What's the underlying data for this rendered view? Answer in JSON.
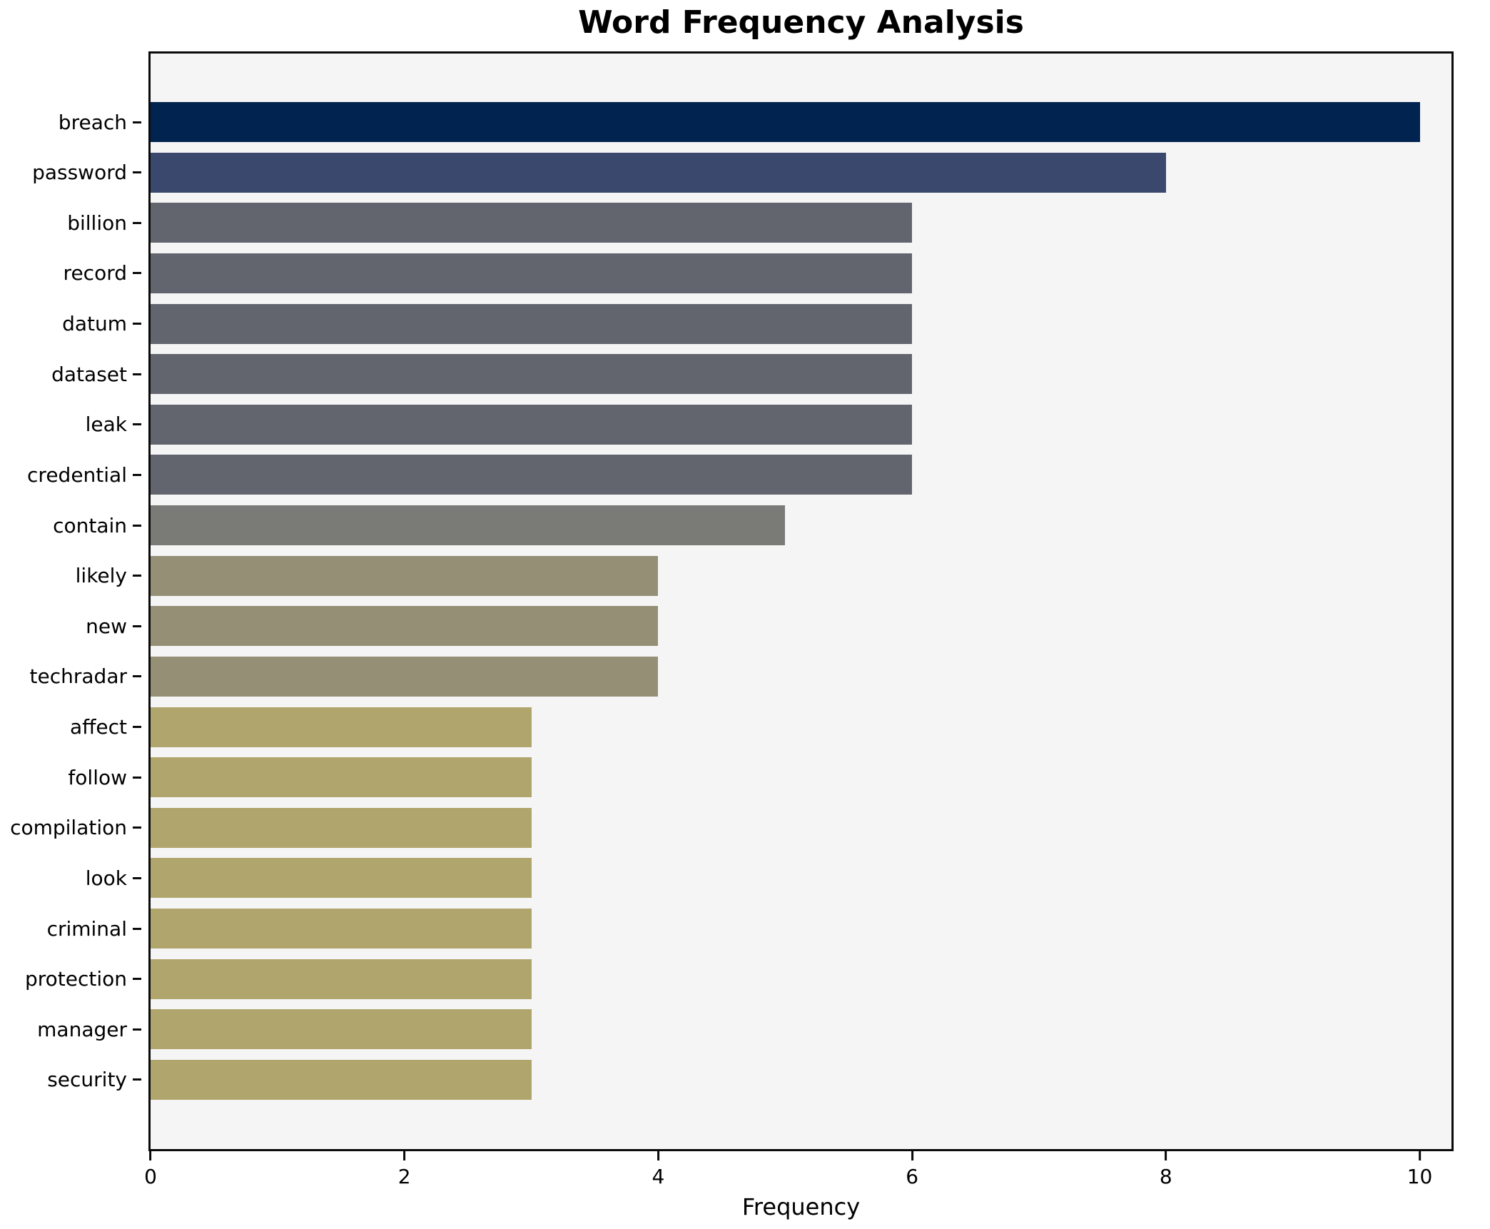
{
  "title": "Word Frequency Analysis",
  "xlabel": "Frequency",
  "chart_data": {
    "type": "bar",
    "orientation": "horizontal",
    "title": "Word Frequency Analysis",
    "xlabel": "Frequency",
    "ylabel": "",
    "grid": false,
    "legend": false,
    "plot_background": "#f5f5f6",
    "figure_background": "#ffffff",
    "spine_color": "#0a0a0a",
    "xlim": [
      0,
      10.25
    ],
    "xticks": [
      0,
      2,
      4,
      6,
      8,
      10
    ],
    "categories": [
      "breach",
      "password",
      "billion",
      "record",
      "datum",
      "dataset",
      "leak",
      "credential",
      "contain",
      "likely",
      "new",
      "techradar",
      "affect",
      "follow",
      "compilation",
      "look",
      "criminal",
      "protection",
      "manager",
      "security"
    ],
    "values": [
      10,
      8,
      6,
      6,
      6,
      6,
      6,
      6,
      5,
      4,
      4,
      4,
      3,
      3,
      3,
      3,
      3,
      3,
      3,
      3
    ],
    "bar_colors": [
      "#00234f",
      "#3a486d",
      "#63656e",
      "#63656e",
      "#63656e",
      "#63656e",
      "#63656e",
      "#63656e",
      "#7a7a76",
      "#948f75",
      "#948f75",
      "#948f75",
      "#b1a56e",
      "#b1a56e",
      "#b1a56e",
      "#b1a56e",
      "#b1a56e",
      "#b1a56e",
      "#b1a56e",
      "#b1a56e"
    ]
  }
}
